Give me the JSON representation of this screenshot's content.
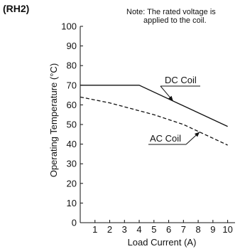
{
  "chart_data": {
    "type": "line",
    "title": "(RH2)",
    "note": [
      "Note: The rated voltage is",
      "applied to the coil."
    ],
    "xlabel": "Load Current (A)",
    "ylabel": "Operating Temperature (°C)",
    "xlim": [
      0,
      10.5
    ],
    "ylim": [
      0,
      100
    ],
    "x_ticks": [
      1,
      2,
      3,
      4,
      5,
      6,
      7,
      8,
      9,
      10
    ],
    "y_ticks": [
      0,
      10,
      20,
      30,
      40,
      50,
      60,
      70,
      80,
      90,
      100
    ],
    "grid": false,
    "series": [
      {
        "name": "DC Coil",
        "style": "solid",
        "x": [
          0,
          4,
          10
        ],
        "y": [
          70,
          70,
          49
        ]
      },
      {
        "name": "AC Coil",
        "style": "dashed",
        "x": [
          0,
          1,
          2,
          3,
          4,
          5,
          6,
          7,
          8,
          9,
          10
        ],
        "y": [
          64,
          62.5,
          61,
          59,
          57,
          55,
          52.5,
          50,
          46.5,
          43,
          39.5
        ]
      }
    ]
  }
}
